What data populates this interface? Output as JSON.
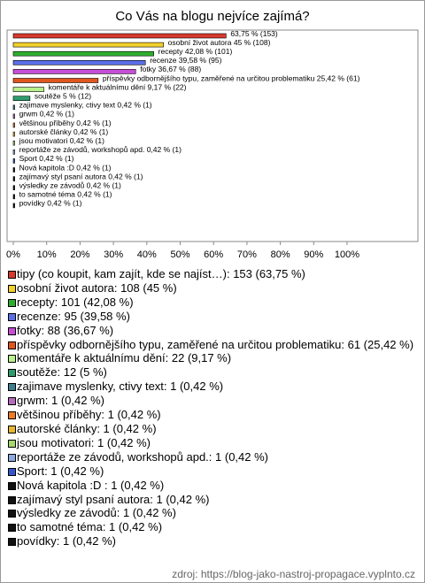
{
  "chart_data": {
    "type": "bar",
    "orientation": "horizontal",
    "title": "Co Vás na blogu nejvíce zajímá?",
    "categories": [
      "tipy (co koupit, kam zajít, kde se najíst…)",
      "osobní život autora",
      "recepty",
      "recenze",
      "fotky",
      "příspěvky odbornějšího typu, zaměřené na určitou problematiku",
      "komentáře k aktuálnímu dění",
      "soutěže",
      "zajimave myslenky, ctivy text",
      "grwm",
      "většinou příběhy",
      "autorské články",
      "jsou motivatori",
      "reportáže ze závodů, workshopů apd.",
      "Sport",
      "Nová kapitola :D",
      "zajímavý styl psaní autora",
      "výsledky ze závodů",
      "to samotné téma",
      "povídky"
    ],
    "values": [
      63.75,
      45,
      42.08,
      39.58,
      36.67,
      25.42,
      9.17,
      5,
      0.42,
      0.42,
      0.42,
      0.42,
      0.42,
      0.42,
      0.42,
      0.42,
      0.42,
      0.42,
      0.42,
      0.42
    ],
    "value_labels": [
      "63,75 % (153)",
      "osobní život autora 45 % (108)",
      "recepty 42,08 % (101)",
      "recenze 39,58 % (95)",
      "fotky 36,67 % (88)",
      "příspěvky odbornějšího typu, zaměřené na určitou problematiku 25,42 % (61)",
      "komentáře k aktuálnímu dění 9,17 % (22)",
      "soutěže 5 % (12)",
      "zajimave myslenky, ctivy text 0,42 % (1)",
      "grwm 0,42 % (1)",
      "většinou příběhy 0,42 % (1)",
      "autorské články 0,42 % (1)",
      "jsou motivatori 0,42 % (1)",
      "reportáže ze závodů, workshopů apd. 0,42 % (1)",
      "Sport 0,42 % (1)",
      "Nová kapitola :D 0,42 % (1)",
      "zajímavý styl psaní autora 0,42 % (1)",
      "výsledky ze závodů 0,42 % (1)",
      "to samotné téma 0,42 % (1)",
      "povídky 0,42 % (1)"
    ],
    "legend_labels": [
      "tipy (co koupit, kam zajít, kde se najíst…): 153 (63,75 %)",
      "osobní život autora: 108 (45 %)",
      "recepty: 101 (42,08 %)",
      "recenze: 95 (39,58 %)",
      "fotky: 88 (36,67 %)",
      "příspěvky odbornějšího typu, zaměřené na určitou problematiku: 61 (25,42 %)",
      "komentáře k aktuálnímu dění: 22 (9,17 %)",
      "soutěže: 12 (5 %)",
      "zajimave myslenky, ctivy text: 1 (0,42 %)",
      "grwm: 1 (0,42 %)",
      "většinou příběhy: 1 (0,42 %)",
      "autorské články: 1 (0,42 %)",
      "jsou motivatori: 1 (0,42 %)",
      "reportáže ze závodů, workshopů apd.: 1 (0,42 %)",
      "Sport: 1 (0,42 %)",
      "Nová kapitola :D : 1 (0,42 %)",
      "zajímavý styl psaní autora: 1 (0,42 %)",
      "výsledky ze závodů: 1 (0,42 %)",
      "to samotné téma: 1 (0,42 %)",
      "povídky: 1 (0,42 %)"
    ],
    "colors": [
      "#d63a2f",
      "#f2d12c",
      "#2eae2e",
      "#5a6fe6",
      "#c64fd6",
      "#e0561f",
      "#b8f08c",
      "#2f9c6d",
      "#3f7e8e",
      "#b46bbb",
      "#ec7b26",
      "#e8b52f",
      "#a6d86c",
      "#8ca9e0",
      "#3455cc",
      "#111111",
      "#111111",
      "#111111",
      "#111111",
      "#111111"
    ],
    "xlim": [
      0,
      100
    ],
    "xticks": [
      {
        "value": 0,
        "label": "0%"
      },
      {
        "value": 10,
        "label": "10%"
      },
      {
        "value": 20,
        "label": "20%"
      },
      {
        "value": 30,
        "label": "30%"
      },
      {
        "value": 40,
        "label": "40%"
      },
      {
        "value": 50,
        "label": "50%"
      },
      {
        "value": 60,
        "label": "60%"
      },
      {
        "value": 70,
        "label": "70%"
      },
      {
        "value": 80,
        "label": "80%"
      },
      {
        "value": 90,
        "label": "90%"
      },
      {
        "value": 100,
        "label": "100%"
      }
    ],
    "source": "zdroj: https://blog-jako-nastroj-propagace.vyplnto.cz"
  }
}
